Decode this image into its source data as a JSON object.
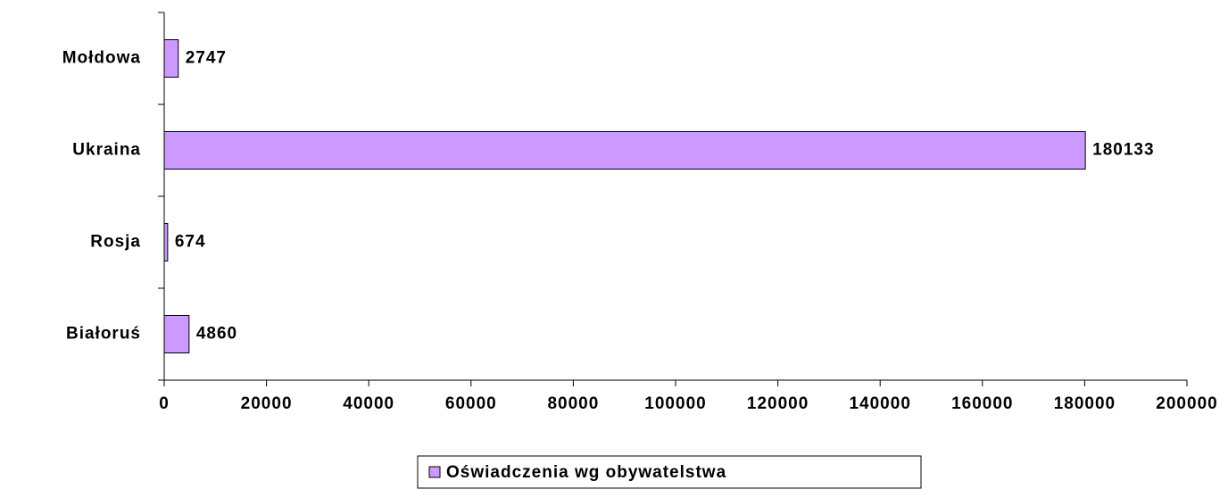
{
  "chart_data": {
    "type": "bar",
    "orientation": "horizontal",
    "categories": [
      "Białoruś",
      "Rosja",
      "Ukraina",
      "Mołdowa"
    ],
    "series": [
      {
        "name": "Oświadczenia wg obywatelstwa",
        "color": "#cc99ff",
        "values": [
          4860,
          674,
          180133,
          2747
        ]
      }
    ],
    "xlim": [
      0,
      200000
    ],
    "xticks": [
      0,
      20000,
      40000,
      60000,
      80000,
      100000,
      120000,
      140000,
      160000,
      180000,
      200000
    ],
    "legend": "bottom"
  }
}
